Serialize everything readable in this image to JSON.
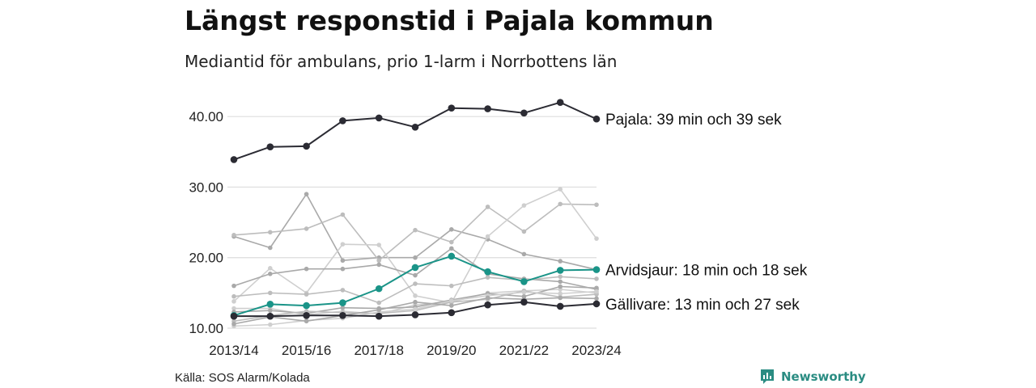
{
  "colors": {
    "highlight_dark": "#2b2b33",
    "highlight_teal": "#1a9488",
    "background_lines": [
      "#a9a9a9",
      "#bdbdbd",
      "#cfcfcf"
    ],
    "gridline": "#dddddd",
    "brand": "#2a8c82"
  },
  "source_text": "Källa: SOS Alarm/Kolada",
  "brand": {
    "name": "Newsworthy",
    "icon": "chart-bubble-icon"
  },
  "chart_data": {
    "type": "line",
    "title": "Längst responstid i Pajala kommun",
    "subtitle": "Mediantid för ambulans, prio 1-larm i Norrbottens län",
    "xlabel": "",
    "ylabel": "",
    "x": [
      "2013/14",
      "2014/15",
      "2015/16",
      "2016/17",
      "2017/18",
      "2018/19",
      "2019/20",
      "2020/21",
      "2021/22",
      "2022/23",
      "2023/24"
    ],
    "x_tick_labels": [
      "2013/14",
      "2015/16",
      "2017/18",
      "2019/20",
      "2021/22",
      "2023/24"
    ],
    "ylim": [
      10,
      43
    ],
    "y_ticks": [
      10,
      20,
      30,
      40
    ],
    "y_tick_labels": [
      "10.00",
      "20.00",
      "30.00",
      "40.00"
    ],
    "grid": true,
    "series": [
      {
        "highlight": "dark",
        "end_label": "Pajala: 39 min och 39 sek",
        "values": [
          33.9,
          35.7,
          35.8,
          39.4,
          39.8,
          38.5,
          41.2,
          41.1,
          40.5,
          42.0,
          39.65
        ]
      },
      {
        "highlight": "teal",
        "end_label": "Arvidsjaur: 18 min och 18 sek",
        "values": [
          11.8,
          13.4,
          13.2,
          13.6,
          15.6,
          18.6,
          20.2,
          18.0,
          16.6,
          18.2,
          18.3
        ]
      },
      {
        "highlight": "dark",
        "end_label": "Gällivare: 13 min och 27 sek",
        "values": [
          11.7,
          11.7,
          11.8,
          11.8,
          11.7,
          11.9,
          12.2,
          13.3,
          13.7,
          13.1,
          13.45
        ]
      },
      {
        "values": [
          23.0,
          21.4,
          29.0,
          19.6,
          20.0,
          20.0,
          24.0,
          22.6,
          20.5,
          19.5,
          18.3
        ]
      },
      {
        "values": [
          23.2,
          23.6,
          24.1,
          26.1,
          19.6,
          23.9,
          22.2,
          27.2,
          23.7,
          27.6,
          27.5
        ]
      },
      {
        "values": [
          13.8,
          18.5,
          15.0,
          21.9,
          21.8,
          14.6,
          13.6,
          23.0,
          27.4,
          29.7,
          22.7
        ]
      },
      {
        "values": [
          16.0,
          17.7,
          18.4,
          18.4,
          19.0,
          17.5,
          21.3,
          17.7,
          17.0,
          16.6,
          15.5
        ]
      },
      {
        "values": [
          14.5,
          15.0,
          14.8,
          15.4,
          13.6,
          16.3,
          16.0,
          17.2,
          16.8,
          17.3,
          17.0
        ]
      },
      {
        "values": [
          12.8,
          12.8,
          11.9,
          12.4,
          12.0,
          13.3,
          13.7,
          15.0,
          15.3,
          15.5,
          15.0
        ]
      },
      {
        "values": [
          12.3,
          12.5,
          12.1,
          12.9,
          12.8,
          13.0,
          14.0,
          14.9,
          14.5,
          15.9,
          15.7
        ]
      },
      {
        "values": [
          11.0,
          11.8,
          12.4,
          12.2,
          12.1,
          12.5,
          13.7,
          14.1,
          15.3,
          14.4,
          14.8
        ]
      },
      {
        "values": [
          10.3,
          10.5,
          11.1,
          11.4,
          12.3,
          12.7,
          13.9,
          14.6,
          15.1,
          14.9,
          15.2
        ]
      },
      {
        "values": [
          10.6,
          11.6,
          11.0,
          11.8,
          12.6,
          13.7,
          13.2,
          14.3,
          14.1,
          14.3,
          14.2
        ]
      }
    ]
  }
}
